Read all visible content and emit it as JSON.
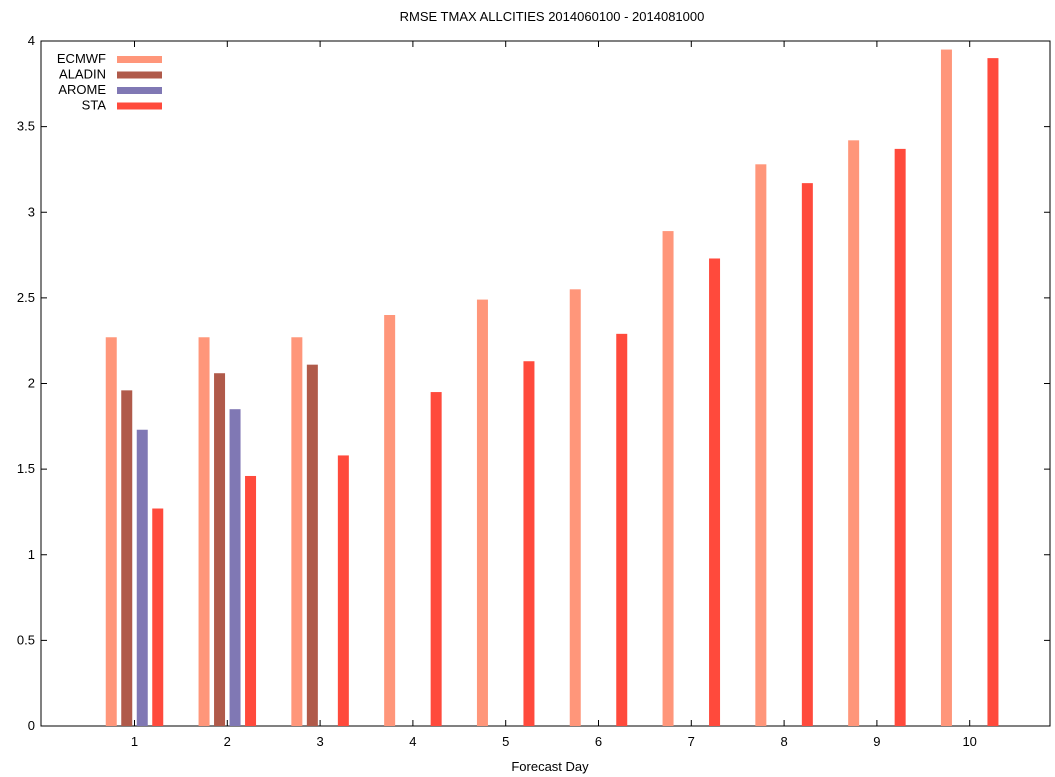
{
  "chart_data": {
    "type": "bar",
    "title": "RMSE  TMAX  ALLCITIES  2014060100 - 2014081000",
    "xlabel": "Forecast Day",
    "ylabel": "",
    "categories": [
      "1",
      "2",
      "3",
      "4",
      "5",
      "6",
      "7",
      "8",
      "9",
      "10"
    ],
    "ylim": [
      0,
      4
    ],
    "yticks": [
      "0",
      "0.5",
      "1",
      "1.5",
      "2",
      "2.5",
      "3",
      "3.5",
      "4"
    ],
    "grid": false,
    "legend_position": "top-left",
    "series": [
      {
        "name": "ECMWF",
        "color": "#ff967a",
        "values": [
          2.27,
          2.27,
          2.27,
          2.4,
          2.49,
          2.55,
          2.89,
          3.28,
          3.42,
          3.95
        ]
      },
      {
        "name": "ALADIN",
        "color": "#b05a4a",
        "values": [
          1.96,
          2.06,
          2.11,
          null,
          null,
          null,
          null,
          null,
          null,
          null
        ]
      },
      {
        "name": "AROME",
        "color": "#8078b4",
        "values": [
          1.73,
          1.85,
          null,
          null,
          null,
          null,
          null,
          null,
          null,
          null
        ]
      },
      {
        "name": "STA",
        "color": "#ff4a3c",
        "values": [
          1.27,
          1.46,
          1.58,
          1.95,
          2.13,
          2.29,
          2.73,
          3.17,
          3.37,
          3.9
        ]
      }
    ]
  }
}
